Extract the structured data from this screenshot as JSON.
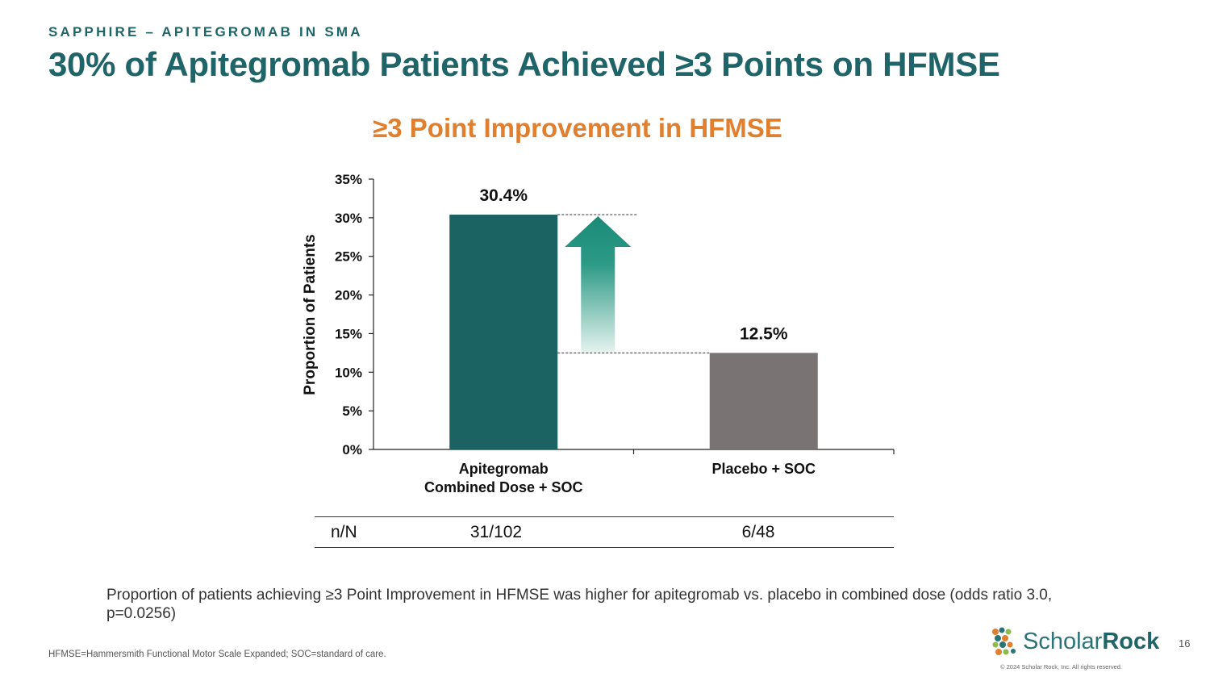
{
  "header": {
    "kicker": "SAPPHIRE – APITEGROMAB IN SMA",
    "title": "30% of Apitegromab Patients Achieved ≥3 Points on HFMSE"
  },
  "chart_data": {
    "type": "bar",
    "title": "≥3 Point Improvement in HFMSE",
    "xlabel": "",
    "ylabel": "Proportion of Patients",
    "categories": [
      "Apitegromab\nCombined Dose + SOC",
      "Placebo + SOC"
    ],
    "values": [
      30.4,
      12.5
    ],
    "value_labels": [
      "30.4%",
      "12.5%"
    ],
    "bar_colors": [
      "#1b6262",
      "#7a7373"
    ],
    "ylim": [
      0,
      35
    ],
    "yticks": [
      0,
      5,
      10,
      15,
      20,
      25,
      30,
      35
    ],
    "ytick_labels": [
      "0%",
      "5%",
      "10%",
      "15%",
      "20%",
      "25%",
      "30%",
      "35%"
    ],
    "grid": false,
    "annotation": "upward-arrow"
  },
  "table": {
    "label": "n/N",
    "values": [
      "31/102",
      "6/48"
    ]
  },
  "description": "Proportion of patients achieving ≥3 Point Improvement in HFMSE was higher for apitegromab vs. placebo in combined dose (odds ratio 3.0, p=0.0256)",
  "footnote": "HFMSE=Hammersmith Functional Motor Scale Expanded; SOC=standard of care.",
  "logo": {
    "text_light": "Scholar",
    "text_bold": "Rock",
    "icon": "scholar-rock-logo-icon"
  },
  "copyright": "© 2024 Scholar Rock, Inc. All rights reserved.",
  "page_number": "16",
  "colors": {
    "heading": "#1e6468",
    "chart_title": "#e07f2e",
    "arrow": "#1a8a78"
  }
}
